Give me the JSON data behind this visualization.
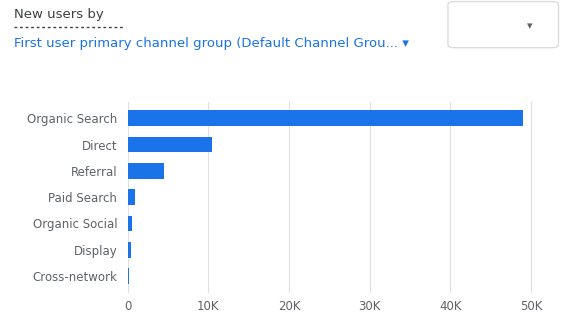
{
  "title_line1": "New users by",
  "title_line2": "First user primary channel group (Default Channel Grou... ▾",
  "categories": [
    "Organic Search",
    "Direct",
    "Referral",
    "Paid Search",
    "Organic Social",
    "Display",
    "Cross-network"
  ],
  "values": [
    49000,
    10500,
    4500,
    900,
    600,
    450,
    150
  ],
  "bar_color": "#1a73e8",
  "background_color": "#ffffff",
  "xlim": [
    0,
    52000
  ],
  "xticks": [
    0,
    10000,
    20000,
    30000,
    40000,
    50000
  ],
  "xtick_labels": [
    "0",
    "10K",
    "20K",
    "30K",
    "40K",
    "50K"
  ],
  "title_color_line1": "#3c4043",
  "title_color_line2": "#1a73e8",
  "tick_label_color": "#5f6368",
  "grid_color": "#e0e0e0",
  "title_fontsize": 9.5,
  "axis_fontsize": 8.5,
  "bar_height": 0.6,
  "checkmark_color": "#34a853",
  "arrow_color": "#5f6368"
}
